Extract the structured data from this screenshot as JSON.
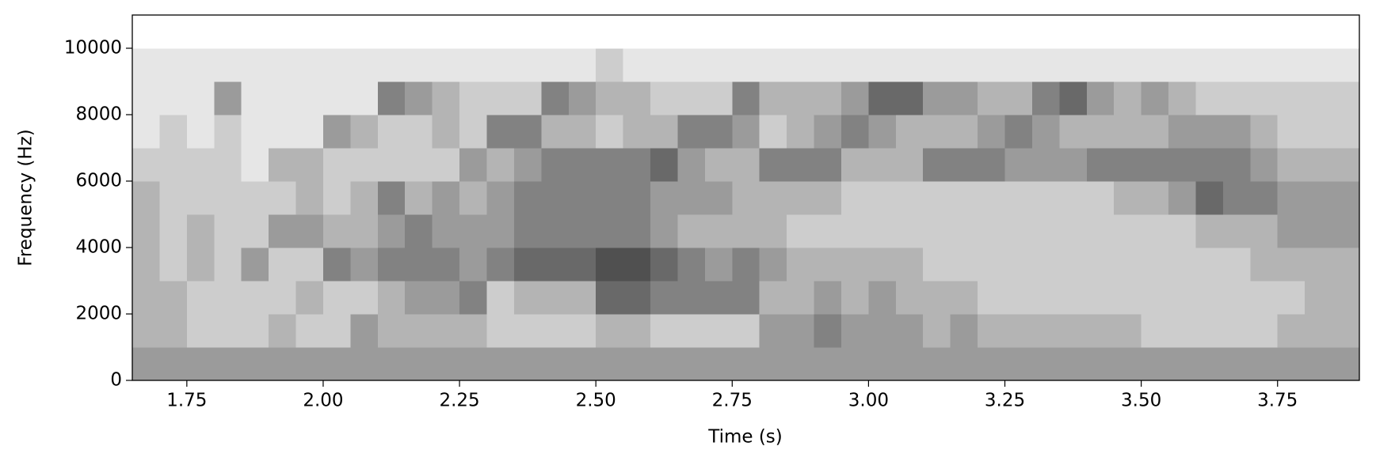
{
  "chart_data": {
    "type": "spectrogram",
    "x_label": "Time (s)",
    "y_label": "Frequency (Hz)",
    "x_edges": [
      1.65,
      1.7,
      1.75,
      1.8,
      1.85,
      1.9,
      1.95,
      2.0,
      2.05,
      2.1,
      2.15,
      2.2,
      2.25,
      2.3,
      2.35,
      2.4,
      2.45,
      2.5,
      2.55,
      2.6,
      2.65,
      2.7,
      2.75,
      2.8,
      2.85,
      2.9,
      2.95,
      3.0,
      3.05,
      3.1,
      3.15,
      3.2,
      3.25,
      3.3,
      3.35,
      3.4,
      3.45,
      3.5,
      3.55,
      3.6,
      3.65,
      3.7,
      3.75,
      3.8,
      3.85,
      3.9
    ],
    "y_edges": [
      0,
      1000,
      2000,
      3000,
      4000,
      5000,
      6000,
      7000,
      8000,
      9000,
      10000,
      11000
    ],
    "values": [
      [
        4,
        3,
        3,
        3,
        3,
        3,
        2,
        1,
        1,
        1,
        0
      ],
      [
        4,
        3,
        3,
        2,
        2,
        2,
        2,
        2,
        1,
        1,
        0
      ],
      [
        4,
        2,
        2,
        3,
        3,
        2,
        2,
        1,
        1,
        1,
        0
      ],
      [
        4,
        2,
        2,
        2,
        2,
        2,
        2,
        2,
        4,
        1,
        0
      ],
      [
        4,
        2,
        2,
        4,
        2,
        2,
        1,
        1,
        1,
        1,
        0
      ],
      [
        4,
        3,
        2,
        2,
        4,
        2,
        3,
        1,
        1,
        1,
        0
      ],
      [
        4,
        2,
        3,
        2,
        4,
        3,
        3,
        1,
        1,
        1,
        0
      ],
      [
        4,
        2,
        2,
        5,
        3,
        2,
        2,
        4,
        1,
        1,
        0
      ],
      [
        4,
        4,
        2,
        4,
        3,
        3,
        2,
        3,
        1,
        1,
        0
      ],
      [
        4,
        3,
        3,
        5,
        4,
        5,
        2,
        2,
        5,
        1,
        0
      ],
      [
        4,
        3,
        4,
        5,
        5,
        3,
        2,
        2,
        4,
        1,
        0
      ],
      [
        4,
        3,
        4,
        5,
        4,
        4,
        2,
        3,
        3,
        1,
        0
      ],
      [
        4,
        3,
        5,
        4,
        4,
        3,
        4,
        2,
        2,
        1,
        0
      ],
      [
        4,
        2,
        2,
        5,
        4,
        4,
        3,
        5,
        2,
        1,
        0
      ],
      [
        4,
        2,
        3,
        6,
        5,
        5,
        4,
        5,
        2,
        1,
        0
      ],
      [
        4,
        2,
        3,
        6,
        5,
        5,
        5,
        3,
        5,
        1,
        0
      ],
      [
        4,
        2,
        3,
        6,
        5,
        5,
        5,
        3,
        4,
        1,
        0
      ],
      [
        4,
        3,
        6,
        7,
        5,
        5,
        5,
        2,
        3,
        2,
        0
      ],
      [
        4,
        3,
        6,
        7,
        5,
        5,
        5,
        3,
        3,
        1,
        0
      ],
      [
        4,
        2,
        5,
        6,
        4,
        4,
        6,
        3,
        2,
        1,
        0
      ],
      [
        4,
        2,
        5,
        5,
        3,
        4,
        4,
        5,
        2,
        1,
        0
      ],
      [
        4,
        2,
        5,
        4,
        3,
        4,
        3,
        5,
        2,
        1,
        0
      ],
      [
        4,
        2,
        5,
        5,
        3,
        3,
        3,
        4,
        5,
        1,
        0
      ],
      [
        4,
        4,
        3,
        4,
        3,
        3,
        5,
        2,
        3,
        1,
        0
      ],
      [
        4,
        4,
        3,
        3,
        2,
        3,
        5,
        3,
        3,
        1,
        0
      ],
      [
        4,
        5,
        4,
        3,
        2,
        3,
        5,
        4,
        3,
        1,
        0
      ],
      [
        4,
        4,
        3,
        3,
        2,
        2,
        3,
        5,
        4,
        1,
        0
      ],
      [
        4,
        4,
        4,
        3,
        2,
        2,
        3,
        4,
        6,
        1,
        0
      ],
      [
        4,
        4,
        3,
        3,
        2,
        2,
        3,
        3,
        6,
        1,
        0
      ],
      [
        4,
        3,
        3,
        2,
        2,
        2,
        5,
        3,
        4,
        1,
        0
      ],
      [
        4,
        4,
        3,
        2,
        2,
        2,
        5,
        3,
        4,
        1,
        0
      ],
      [
        4,
        3,
        2,
        2,
        2,
        2,
        5,
        4,
        3,
        1,
        0
      ],
      [
        4,
        3,
        2,
        2,
        2,
        2,
        4,
        5,
        3,
        1,
        0
      ],
      [
        4,
        3,
        2,
        2,
        2,
        2,
        4,
        4,
        5,
        1,
        0
      ],
      [
        4,
        3,
        2,
        2,
        2,
        2,
        4,
        3,
        6,
        1,
        0
      ],
      [
        4,
        3,
        2,
        2,
        2,
        2,
        5,
        3,
        4,
        1,
        0
      ],
      [
        4,
        3,
        2,
        2,
        2,
        3,
        5,
        3,
        3,
        1,
        0
      ],
      [
        4,
        2,
        2,
        2,
        2,
        3,
        5,
        3,
        4,
        1,
        0
      ],
      [
        4,
        2,
        2,
        2,
        2,
        4,
        5,
        4,
        3,
        1,
        0
      ],
      [
        4,
        2,
        2,
        2,
        3,
        6,
        5,
        4,
        2,
        1,
        0
      ],
      [
        4,
        2,
        2,
        2,
        3,
        5,
        5,
        4,
        2,
        1,
        0
      ],
      [
        4,
        2,
        2,
        3,
        3,
        5,
        4,
        3,
        2,
        1,
        0
      ],
      [
        4,
        3,
        2,
        3,
        4,
        4,
        3,
        2,
        2,
        1,
        0
      ],
      [
        4,
        3,
        3,
        3,
        4,
        4,
        3,
        2,
        2,
        1,
        0
      ],
      [
        4,
        3,
        3,
        3,
        4,
        4,
        3,
        2,
        2,
        1,
        0
      ]
    ],
    "xlim": [
      1.65,
      3.9
    ],
    "ylim": [
      0,
      11000
    ],
    "xticks": [
      1.75,
      {
        "value": 2.0,
        "label": "2.00"
      },
      2.25,
      {
        "value": 2.5,
        "label": "2.50"
      },
      2.75,
      {
        "value": 3.0,
        "label": "3.00"
      },
      3.25,
      {
        "value": 3.5,
        "label": "3.50"
      },
      3.75
    ],
    "yticks": [
      0,
      2000,
      4000,
      6000,
      8000,
      10000
    ],
    "cmap": "Greys"
  }
}
